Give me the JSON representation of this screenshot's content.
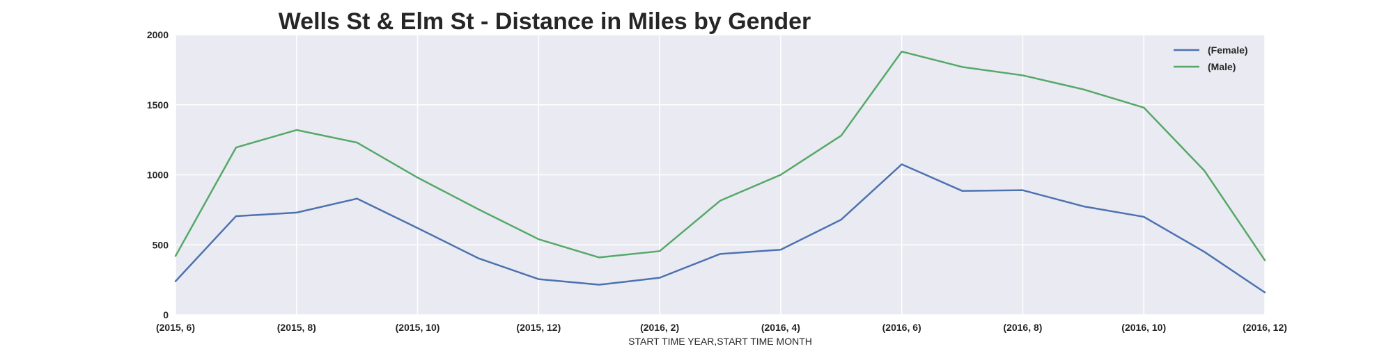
{
  "chart_data": {
    "type": "line",
    "title": "Wells St & Elm St - Distance in Miles by Gender",
    "xlabel": "START TIME YEAR,START TIME MONTH",
    "ylabel": "",
    "x": [
      "(2015, 6)",
      "(2015, 7)",
      "(2015, 8)",
      "(2015, 9)",
      "(2015, 10)",
      "(2015, 11)",
      "(2015, 12)",
      "(2016, 1)",
      "(2016, 2)",
      "(2016, 3)",
      "(2016, 4)",
      "(2016, 5)",
      "(2016, 6)",
      "(2016, 7)",
      "(2016, 8)",
      "(2016, 9)",
      "(2016, 10)",
      "(2016, 11)",
      "(2016, 12)"
    ],
    "x_tick_labels": [
      "(2015, 6)",
      "(2015, 8)",
      "(2015, 10)",
      "(2015, 12)",
      "(2016, 2)",
      "(2016, 4)",
      "(2016, 6)",
      "(2016, 8)",
      "(2016, 10)",
      "(2016, 12)"
    ],
    "ylim": [
      0,
      2000
    ],
    "y_ticks": [
      "0",
      "500",
      "1000",
      "1500",
      "2000"
    ],
    "grid": true,
    "legend_position": "top-right",
    "series": [
      {
        "name": "(Female)",
        "color": "#4c72b0",
        "values": [
          240,
          705,
          730,
          830,
          620,
          405,
          255,
          215,
          265,
          435,
          465,
          680,
          1075,
          885,
          890,
          775,
          700,
          450,
          160
        ]
      },
      {
        "name": "(Male)",
        "color": "#55a868",
        "values": [
          420,
          1195,
          1320,
          1230,
          980,
          755,
          540,
          410,
          455,
          815,
          1000,
          1280,
          1880,
          1770,
          1710,
          1610,
          1480,
          1030,
          390
        ]
      }
    ],
    "colors": {
      "plot_background": "#eaeaf2",
      "grid": "#ffffff",
      "text": "#262626"
    }
  }
}
